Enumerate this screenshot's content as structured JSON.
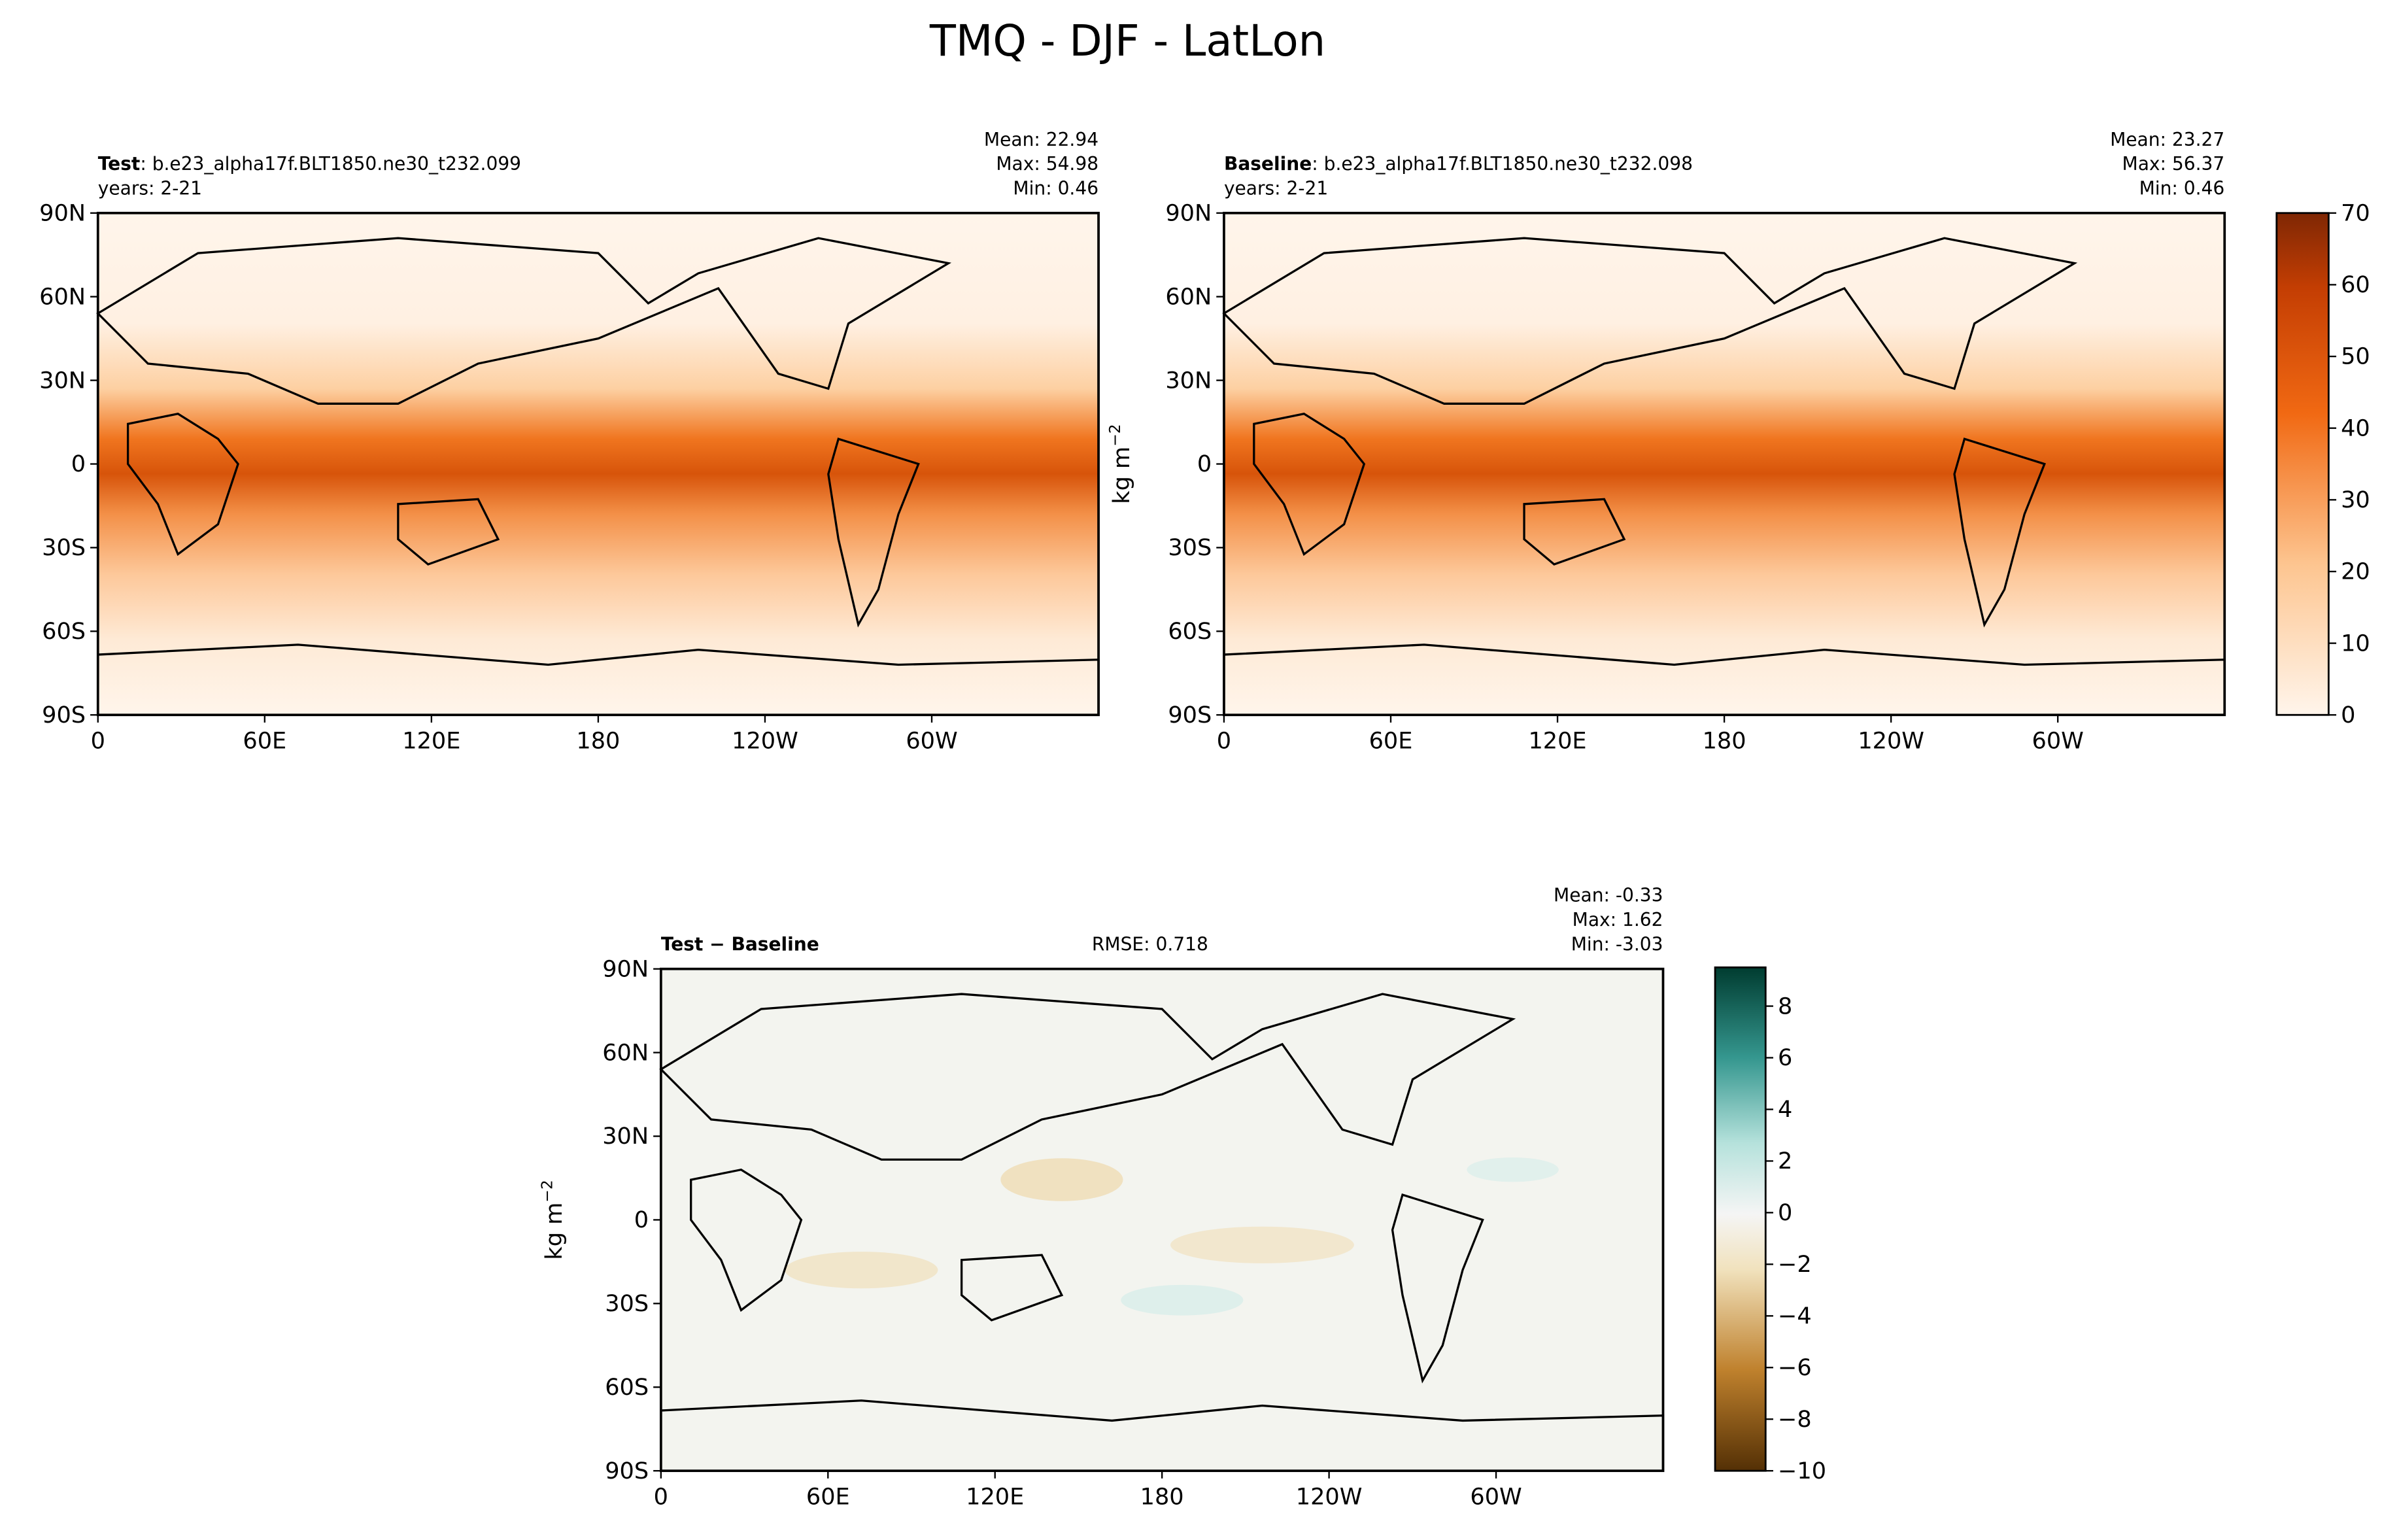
{
  "title": "TMQ - DJF - LatLon",
  "map_axes": {
    "xlim": [
      0,
      360
    ],
    "xticks": [
      0,
      {
        "value": 60,
        "label": "60E"
      },
      {
        "value": 120,
        "label": "120E"
      },
      180,
      {
        "value": 240,
        "label": "120W"
      },
      {
        "value": 300,
        "label": "60W"
      }
    ],
    "ylim": [
      -90,
      90
    ],
    "yticks": [
      {
        "value": 90,
        "label": "90N"
      },
      {
        "value": 60,
        "label": "60N"
      },
      {
        "value": 30,
        "label": "30N"
      },
      0,
      {
        "value": -30,
        "label": "30S"
      },
      {
        "value": -60,
        "label": "60S"
      },
      {
        "value": -90,
        "label": "90S"
      }
    ]
  },
  "units": {
    "base": "kg m",
    "exp": "−2"
  },
  "panels": [
    {
      "name": "Test",
      "case": ": b.e23_alpha17f.BLT1850.ne30_t232.099",
      "years": "years: 2-21",
      "stats": [
        "Mean: 22.94",
        "Max: 54.98",
        "Min:  0.46"
      ]
    },
    {
      "name": "Baseline",
      "case": ": b.e23_alpha17f.BLT1850.ne30_t232.098",
      "years": "years: 2-21",
      "stats": [
        "Mean: 23.27",
        "Max: 56.37",
        "Min:  0.46"
      ]
    },
    {
      "name": "Test − Baseline",
      "rmse": "RMSE: 0.718",
      "stats": [
        "Mean: -0.33",
        "Max:  1.62",
        "Min: -3.03"
      ]
    }
  ],
  "colorbars": [
    {
      "lim": [
        0,
        70
      ],
      "ticks": [
        0,
        10,
        20,
        30,
        40,
        50,
        60,
        70
      ]
    },
    {
      "lim": [
        -10,
        9.5
      ],
      "ticks": [
        {
          "value": -10,
          "label": "−10"
        },
        {
          "value": -8,
          "label": "−8"
        },
        {
          "value": -6,
          "label": "−6"
        },
        {
          "value": -4,
          "label": "−4"
        },
        {
          "value": -2,
          "label": "−2"
        },
        0,
        2,
        4,
        6,
        8
      ]
    }
  ]
}
